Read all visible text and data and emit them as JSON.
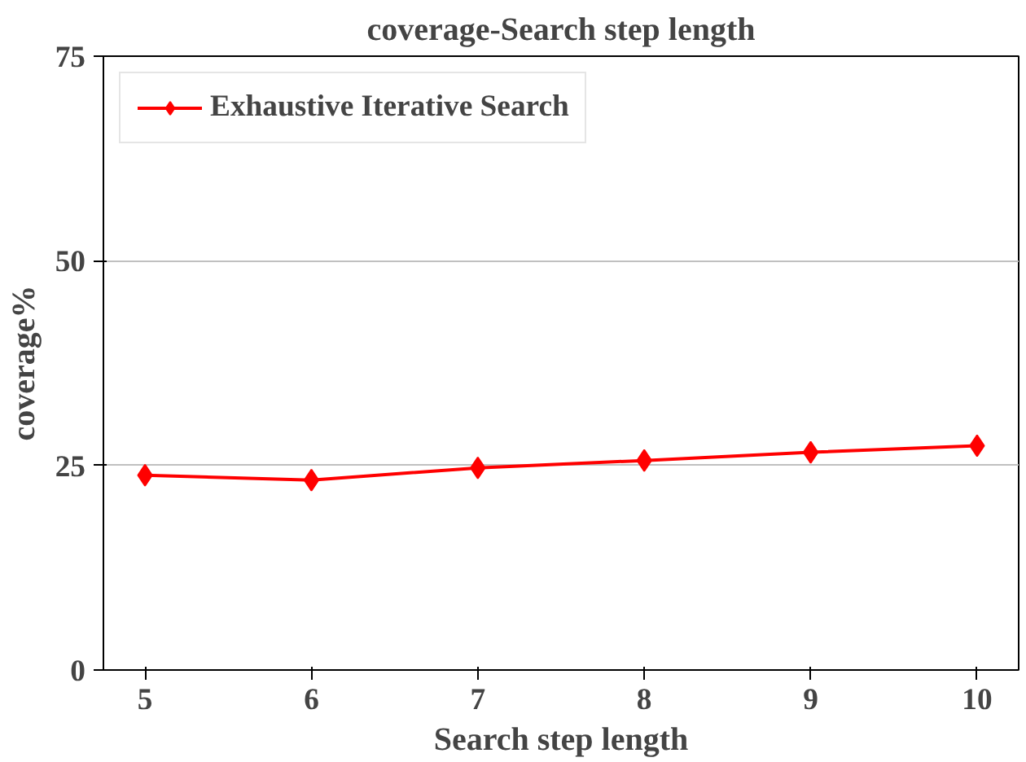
{
  "chart_data": {
    "type": "line",
    "title": "coverage-Search step length",
    "xlabel": "Search step length",
    "ylabel": "coverage%",
    "x": [
      5,
      6,
      7,
      8,
      9,
      10
    ],
    "series": [
      {
        "name": "Exhaustive Iterative Search",
        "color": "#ff0000",
        "values": [
          23.8,
          23.2,
          24.7,
          25.6,
          26.6,
          27.4
        ]
      }
    ],
    "xlim": [
      4.75,
      10.25
    ],
    "xticks": [
      5,
      6,
      7,
      8,
      9,
      10
    ],
    "ylim": [
      0,
      75
    ],
    "yticks": [
      0,
      25,
      50,
      75
    ],
    "grid": "y",
    "legend": "top left",
    "marker": "diamond",
    "line_style": "solid"
  }
}
